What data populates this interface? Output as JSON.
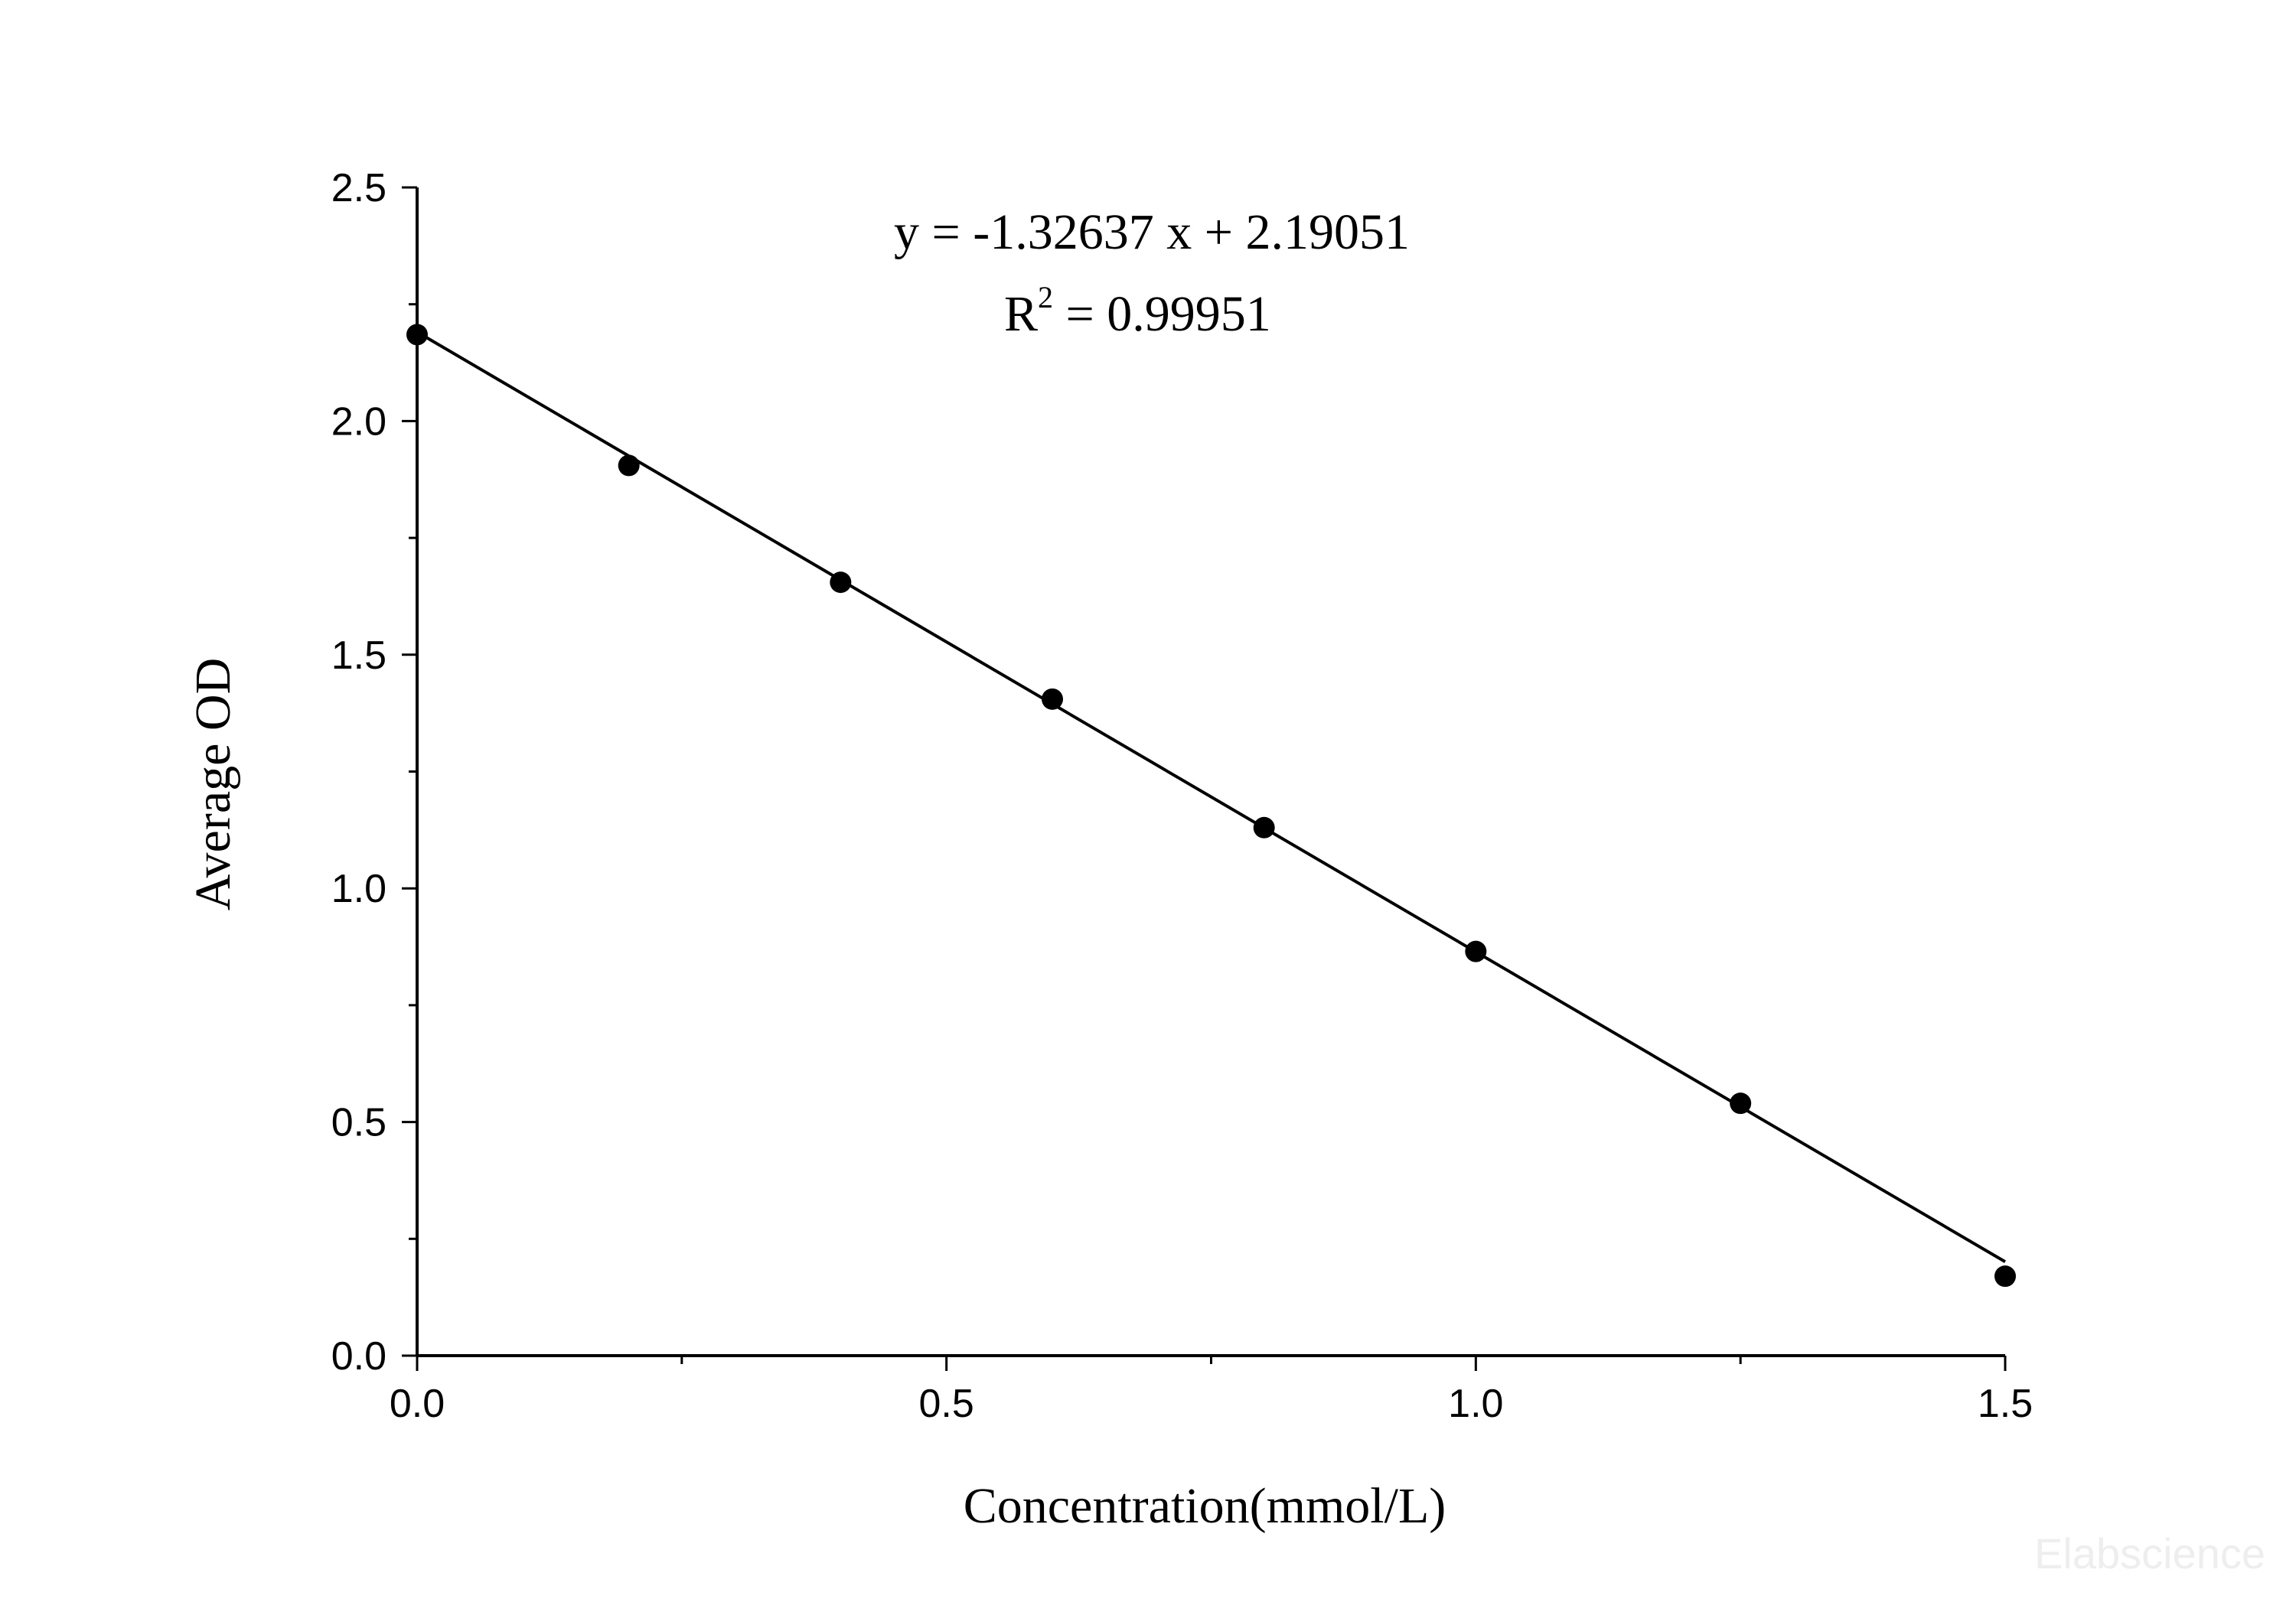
{
  "chart_data": {
    "type": "scatter",
    "xlabel": "Concentration(mmol/L)",
    "ylabel": "Average OD",
    "xlim": [
      0,
      1.5
    ],
    "ylim": [
      0,
      2.5
    ],
    "x_ticks": [
      "0.0",
      "0.5",
      "1.0",
      "1.5"
    ],
    "y_ticks": [
      "0.0",
      "0.5",
      "1.0",
      "1.5",
      "2.0",
      "2.5"
    ],
    "grid": false,
    "points": {
      "x": [
        0,
        0.2,
        0.4,
        0.6,
        0.8,
        1.0,
        1.25,
        1.5
      ],
      "y": [
        2.185,
        1.905,
        1.655,
        1.405,
        1.13,
        0.865,
        0.54,
        0.17
      ]
    },
    "fit_line": {
      "slope": -1.32637,
      "intercept": 2.19051
    },
    "annotations": {
      "equation": "y = -1.32637 x + 2.19051",
      "r2_prefix": "R",
      "r2_sup": "2",
      "r2_value": " = 0.99951"
    },
    "watermark": "Elabscience"
  }
}
